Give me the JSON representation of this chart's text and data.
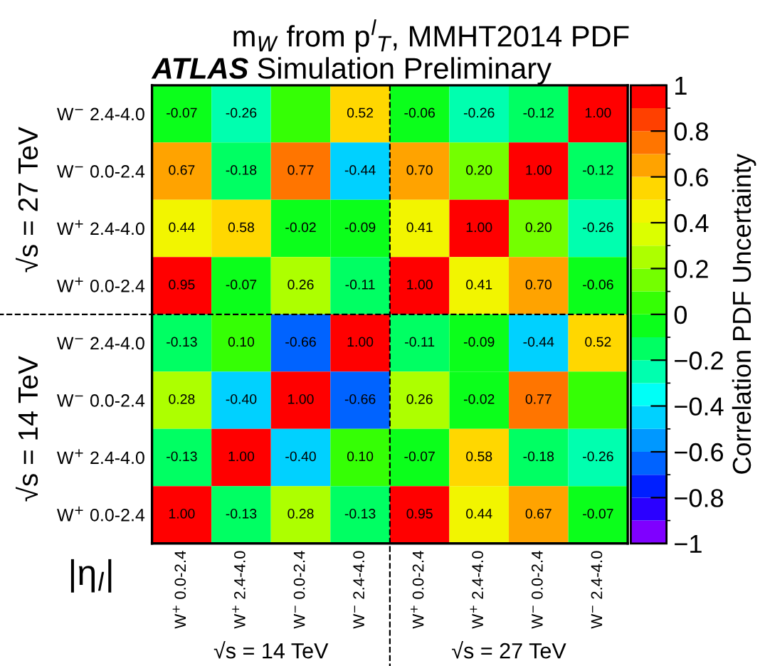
{
  "chart_data": {
    "type": "heatmap",
    "title": "m$_{W}$ from p$^{l}$$_{T}$, MMHT2014 PDF",
    "subtitle": "ATLAS Simulation Preliminary",
    "clabel": "Correlation PDF Uncertainty",
    "annotations": [
      "|η$_{l}$|",
      "√s = 14 TeV",
      "√s = 27 TeV",
      "√s = 27 TeV",
      "√s = 14 TeV"
    ],
    "categories": [
      "W$^{+}$ 0.0-2.4",
      "W$^{+}$ 2.4-4.0",
      "W$^{−}$ 0.0-2.4",
      "W$^{−}$ 2.4-4.0",
      "W$^{+}$ 0.0-2.4",
      "W$^{+}$ 2.4-4.0",
      "W$^{−}$ 0.0-2.4",
      "W$^{−}$ 2.4-4.0"
    ],
    "y_categories": [
      "W$^{−}$ 2.4-4.0",
      "W$^{−}$ 0.0-2.4",
      "W$^{+}$ 2.4-4.0",
      "W$^{+}$ 0.0-2.4",
      "W$^{−}$ 2.4-4.0",
      "W$^{−}$ 0.0-2.4",
      "W$^{+}$ 2.4-4.0",
      "W$^{+}$ 0.0-2.4"
    ],
    "cells": [
      [
        -0.07,
        -0.26,
        0,
        0.52,
        -0.06,
        -0.26,
        -0.12,
        1.0
      ],
      [
        0.67,
        -0.18,
        0.77,
        -0.44,
        0.7,
        0.2,
        1.0,
        -0.12
      ],
      [
        0.44,
        0.58,
        -0.02,
        -0.09,
        0.41,
        1.0,
        0.2,
        -0.26
      ],
      [
        0.95,
        -0.07,
        0.26,
        -0.11,
        1.0,
        0.41,
        0.7,
        -0.06
      ],
      [
        -0.13,
        0.1,
        -0.66,
        1.0,
        -0.11,
        -0.09,
        -0.44,
        0.52
      ],
      [
        0.28,
        -0.4,
        1.0,
        -0.66,
        0.26,
        -0.02,
        0.77,
        0
      ],
      [
        -0.13,
        1.0,
        -0.4,
        0.1,
        -0.07,
        0.58,
        -0.18,
        -0.26
      ],
      [
        1.0,
        -0.13,
        0.28,
        -0.13,
        0.95,
        0.44,
        0.67,
        -0.07
      ]
    ],
    "cell_labels": [
      [
        "-0.07",
        "-0.26",
        null,
        "0.52",
        "-0.06",
        "-0.26",
        "-0.12",
        "1.00"
      ],
      [
        "0.67",
        "-0.18",
        "0.77",
        "-0.44",
        "0.70",
        "0.20",
        "1.00",
        "-0.12"
      ],
      [
        "0.44",
        "0.58",
        "-0.02",
        "-0.09",
        "0.41",
        "1.00",
        "0.20",
        "-0.26"
      ],
      [
        "0.95",
        "-0.07",
        "0.26",
        "-0.11",
        "1.00",
        "0.41",
        "0.70",
        "-0.06"
      ],
      [
        "-0.13",
        "0.10",
        "-0.66",
        "1.00",
        "-0.11",
        "-0.09",
        "-0.44",
        "0.52"
      ],
      [
        "0.28",
        "-0.40",
        "1.00",
        "-0.66",
        "0.26",
        "-0.02",
        "0.77",
        null
      ],
      [
        "-0.13",
        "1.00",
        "-0.40",
        "0.10",
        "-0.07",
        "0.58",
        "-0.18",
        "-0.26"
      ],
      [
        "1.00",
        "-0.13",
        "0.28",
        "-0.13",
        "0.95",
        "0.44",
        "0.67",
        "-0.07"
      ]
    ],
    "clim": [
      -1,
      1
    ],
    "cticks": [
      {
        "value": -1,
        "label": "−1"
      },
      {
        "value": -0.8,
        "label": "−0.8"
      },
      {
        "value": -0.6,
        "label": "−0.6"
      },
      {
        "value": -0.4,
        "label": "−0.4"
      },
      {
        "value": -0.2,
        "label": "−0.2"
      },
      0,
      0.2,
      0.4,
      0.6,
      0.8,
      1
    ]
  }
}
